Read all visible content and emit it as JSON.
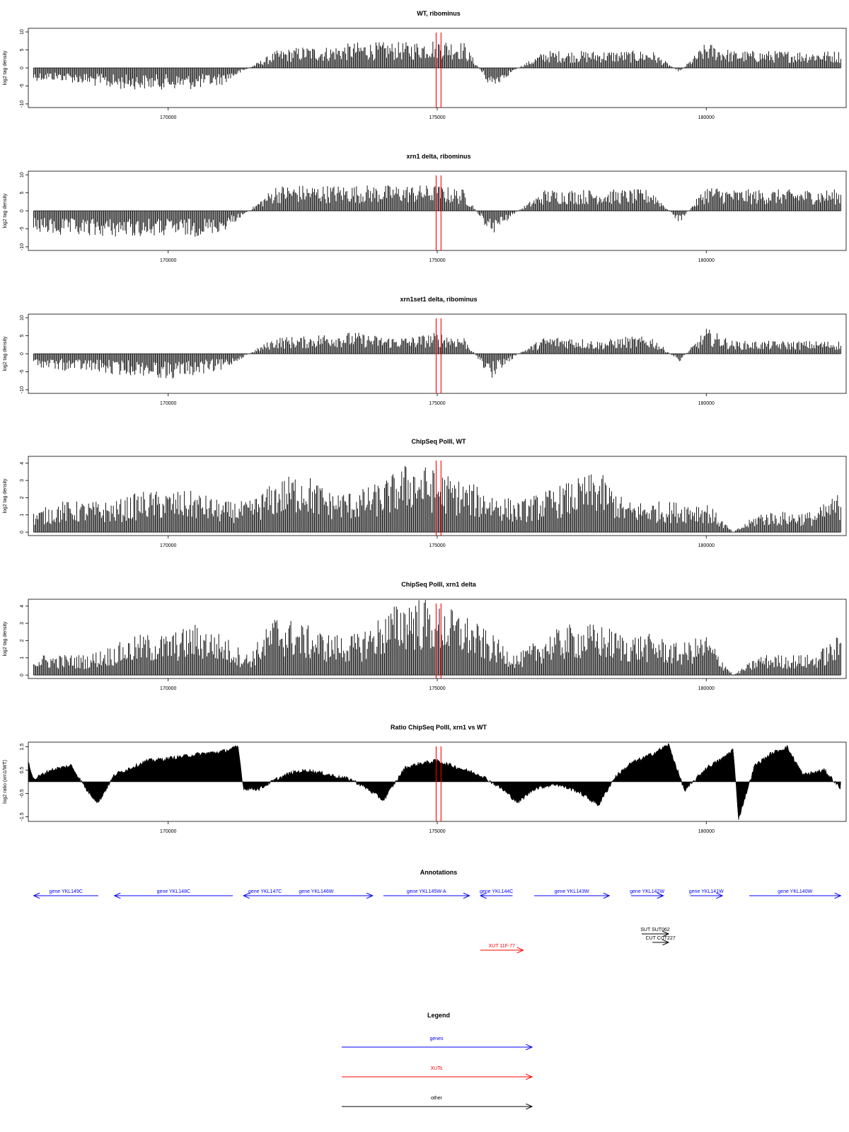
{
  "colors": {
    "gene": "#0000ff",
    "xut": "#ff0000",
    "other": "#000000",
    "marker": "#ff0000",
    "signal": "#000000"
  },
  "x_ticks": [
    170000,
    175000,
    180000
  ],
  "x_tick_labels": [
    "170000",
    "175000",
    "180000"
  ],
  "xlim": [
    167400,
    182600
  ],
  "marker_positions": [
    174980,
    175070
  ],
  "chart_data": [
    {
      "type": "bar",
      "title": "WT, ribominus",
      "ylabel": "log2 tag density",
      "ylim": [
        -11,
        11
      ],
      "y_ticks": [
        -10,
        -5,
        0,
        5,
        10
      ],
      "y_tick_labels": [
        "-10",
        "-5",
        "0",
        "5",
        "10"
      ],
      "series": [
        {
          "x": [
            167500,
            168000,
            168500,
            169000,
            169500,
            170000,
            170500,
            171000,
            171500,
            172000,
            172500,
            173000,
            173500,
            174000,
            174500,
            175000,
            175500,
            176000,
            176500,
            177000,
            177500,
            178000,
            178500,
            179000,
            179500,
            180000,
            180500,
            181000,
            181500,
            182000,
            182500
          ],
          "values": [
            -3,
            -3,
            -4,
            -5,
            -5,
            -5,
            -5,
            -4,
            0,
            4,
            5,
            5,
            6,
            6,
            6,
            7,
            6,
            -5,
            0,
            4,
            4,
            4,
            4,
            4,
            -1,
            6,
            4,
            4,
            4,
            4,
            4
          ]
        }
      ]
    },
    {
      "type": "bar",
      "title": "xrn1 delta, ribominus",
      "ylabel": "log2 tag density",
      "ylim": [
        -11,
        11
      ],
      "y_ticks": [
        -10,
        -5,
        0,
        5,
        10
      ],
      "y_tick_labels": [
        "-10",
        "-5",
        "0",
        "5",
        "10"
      ],
      "series": [
        {
          "x": [
            167500,
            168000,
            168500,
            169000,
            169500,
            170000,
            170500,
            171000,
            171500,
            172000,
            172500,
            173000,
            173500,
            174000,
            174500,
            175000,
            175500,
            176000,
            176500,
            177000,
            177500,
            178000,
            178500,
            179000,
            179500,
            180000,
            180500,
            181000,
            181500,
            182000,
            182500
          ],
          "values": [
            -5,
            -6,
            -6,
            -6,
            -6,
            -6,
            -6,
            -5,
            0,
            6,
            6,
            6,
            6,
            6,
            6,
            6,
            5,
            -6,
            0,
            5,
            5,
            5,
            5,
            5,
            -3,
            6,
            5,
            5,
            5,
            5,
            5
          ]
        }
      ]
    },
    {
      "type": "bar",
      "title": "xrn1set1 delta, ribominus",
      "ylabel": "log2 tag density",
      "ylim": [
        -11,
        11
      ],
      "y_ticks": [
        -10,
        -5,
        0,
        5,
        10
      ],
      "y_tick_labels": [
        "-10",
        "-5",
        "0",
        "5",
        "10"
      ],
      "series": [
        {
          "x": [
            167500,
            168000,
            168500,
            169000,
            169500,
            170000,
            170500,
            171000,
            171500,
            172000,
            172500,
            173000,
            173500,
            174000,
            174500,
            175000,
            175500,
            176000,
            176500,
            177000,
            177500,
            178000,
            178500,
            179000,
            179500,
            180000,
            180500,
            181000,
            181500,
            182000,
            182500
          ],
          "values": [
            -3,
            -4,
            -4,
            -5,
            -5,
            -6,
            -5,
            -4,
            0,
            4,
            4,
            5,
            5,
            4,
            4,
            5,
            4,
            -6,
            0,
            4,
            4,
            3,
            4,
            4,
            -2,
            6,
            3,
            3,
            3,
            3,
            3
          ]
        }
      ]
    },
    {
      "type": "bar",
      "title": "ChipSeq PolII, WT",
      "ylabel": "log2 tag density",
      "ylim": [
        -0.2,
        4.4
      ],
      "y_ticks": [
        0,
        1,
        2,
        3,
        4
      ],
      "y_tick_labels": [
        "0",
        "1",
        "2",
        "3",
        "4"
      ],
      "series": [
        {
          "x": [
            167500,
            168000,
            168500,
            169000,
            169500,
            170000,
            170500,
            171000,
            171500,
            172000,
            172500,
            173000,
            173500,
            174000,
            174500,
            175000,
            175500,
            176000,
            176500,
            177000,
            177500,
            178000,
            178500,
            179000,
            179500,
            180000,
            180500,
            181000,
            181500,
            182000,
            182500
          ],
          "values": [
            1,
            1.5,
            1.5,
            1.5,
            2,
            2,
            2,
            1.5,
            1.5,
            2.5,
            3,
            2,
            2,
            2.5,
            3.5,
            3,
            2.5,
            2,
            1.5,
            2,
            2.5,
            3,
            1.5,
            1.5,
            1.5,
            1.5,
            0,
            1,
            1,
            1,
            2
          ]
        }
      ]
    },
    {
      "type": "bar",
      "title": "ChipSeq PolII, xrn1 delta",
      "ylabel": "log2 tag density",
      "ylim": [
        -0.2,
        4.4
      ],
      "y_ticks": [
        0,
        1,
        2,
        3,
        4
      ],
      "y_tick_labels": [
        "0",
        "1",
        "2",
        "3",
        "4"
      ],
      "series": [
        {
          "x": [
            167500,
            168000,
            168500,
            169000,
            169500,
            170000,
            170500,
            171000,
            171500,
            172000,
            172500,
            173000,
            173500,
            174000,
            174500,
            175000,
            175500,
            176000,
            176500,
            177000,
            177500,
            178000,
            178500,
            179000,
            179500,
            180000,
            180500,
            181000,
            181500,
            182000,
            182500
          ],
          "values": [
            1,
            1,
            1,
            1.5,
            2,
            2,
            2.5,
            2,
            1,
            3,
            2.5,
            2,
            2,
            3,
            4,
            3.5,
            3,
            2,
            1,
            2,
            2.5,
            2.5,
            2,
            2,
            1.5,
            2,
            0,
            1,
            1,
            1,
            2
          ]
        }
      ]
    },
    {
      "type": "area",
      "title": "Ratio ChipSeq PolII, xrn1 vs WT",
      "ylabel": "log2 ratio (xrn1/WT)",
      "ylim": [
        -1.7,
        1.7
      ],
      "y_ticks": [
        -1.5,
        -0.5,
        0.5,
        1.5
      ],
      "y_tick_labels": [
        "-1.5",
        "-0.5",
        "0.5",
        "1.5"
      ],
      "series": [
        {
          "x": [
            167400,
            167500,
            167800,
            168200,
            168500,
            168700,
            169000,
            169300,
            169600,
            170000,
            170300,
            170600,
            171000,
            171300,
            171400,
            171700,
            172000,
            172300,
            172600,
            173000,
            173400,
            173700,
            174000,
            174400,
            174700,
            175000,
            175400,
            175800,
            176200,
            176500,
            176800,
            177200,
            177600,
            178000,
            178300,
            178600,
            179000,
            179300,
            179600,
            180000,
            180300,
            180500,
            180600,
            180900,
            181200,
            181500,
            181800,
            182200,
            182500
          ],
          "values": [
            0.9,
            0.1,
            0.5,
            0.7,
            -0.4,
            -0.9,
            0.3,
            0.6,
            0.9,
            1.0,
            1.1,
            1.2,
            1.3,
            1.5,
            -0.3,
            -0.3,
            0.1,
            0.4,
            0.5,
            0.3,
            0.1,
            -0.3,
            -0.8,
            0.6,
            0.8,
            0.9,
            0.6,
            0.3,
            -0.3,
            -0.9,
            -0.3,
            -0.1,
            -0.4,
            -1.0,
            0.2,
            0.8,
            1.2,
            1.6,
            -0.4,
            0.6,
            1.0,
            1.4,
            -1.6,
            0.7,
            1.2,
            1.5,
            0.3,
            0.5,
            -0.3
          ]
        }
      ]
    }
  ],
  "annotations": {
    "title": "Annotations",
    "features": [
      {
        "label": "gene YKL149C",
        "start": 168700,
        "end": 167500,
        "type": "gene",
        "row": 0
      },
      {
        "label": "gene YKL148C",
        "start": 171200,
        "end": 169000,
        "type": "gene",
        "row": 0
      },
      {
        "label": "gene YKL147C",
        "start": 172200,
        "end": 171400,
        "type": "gene",
        "row": 0
      },
      {
        "label": "gene YKL146W",
        "start": 171700,
        "end": 173800,
        "type": "gene",
        "row": 0
      },
      {
        "label": "gene YKL145W-A",
        "start": 174000,
        "end": 175600,
        "type": "gene",
        "row": 0
      },
      {
        "label": "gene YKL144C",
        "start": 176400,
        "end": 175800,
        "type": "gene",
        "row": 0
      },
      {
        "label": "gene YKL143W",
        "start": 176800,
        "end": 178200,
        "type": "gene",
        "row": 0
      },
      {
        "label": "gene YKL142W",
        "start": 178600,
        "end": 179200,
        "type": "gene",
        "row": 0
      },
      {
        "label": "gene YKL141W",
        "start": 179700,
        "end": 180300,
        "type": "gene",
        "row": 0
      },
      {
        "label": "gene YKL140W",
        "start": 180800,
        "end": 182500,
        "type": "gene",
        "row": 0
      },
      {
        "label": "XUT 11F-77",
        "start": 175800,
        "end": 176600,
        "type": "xut",
        "row": 2
      },
      {
        "label": "SUT SUT062",
        "start": 178800,
        "end": 179300,
        "type": "other",
        "row": 1
      },
      {
        "label": "CUT CUT227",
        "start": 179000,
        "end": 179300,
        "type": "other",
        "row": 1
      }
    ]
  },
  "legend": {
    "title": "Legend",
    "items": [
      {
        "label": "genes",
        "type": "gene"
      },
      {
        "label": "XUTs",
        "type": "xut"
      },
      {
        "label": "other",
        "type": "other"
      }
    ]
  }
}
